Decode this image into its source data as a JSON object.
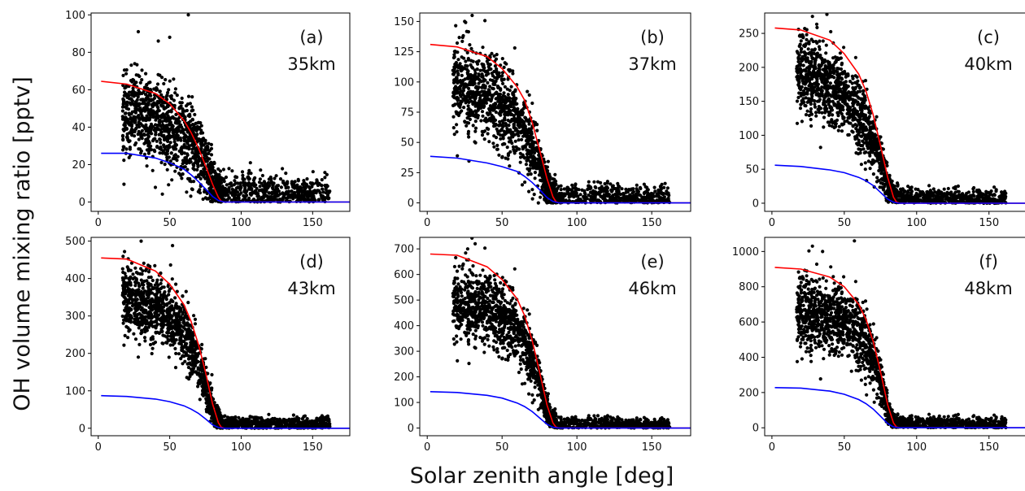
{
  "figure": {
    "ylabel": "OH volume mixing ratio [pptv]",
    "xlabel": "Solar zenith angle [deg]"
  },
  "style": {
    "point_color": "#000000",
    "red_curve_color": "#ff0000",
    "blue_curve_color": "#0000ff"
  },
  "chart_data": [
    {
      "type": "scatter",
      "panel": "(a)",
      "altitude": "35km",
      "xlim": [
        -5,
        176
      ],
      "ylim": [
        -5,
        101
      ],
      "xticks": [
        0,
        50,
        100,
        150
      ],
      "yticks": [
        0,
        20,
        40,
        60,
        80,
        100
      ],
      "scatter_center": [
        [
          18,
          48
        ],
        [
          30,
          46
        ],
        [
          45,
          42
        ],
        [
          55,
          38
        ],
        [
          62,
          34
        ],
        [
          68,
          30
        ],
        [
          74,
          22
        ],
        [
          78,
          13
        ],
        [
          82,
          7
        ],
        [
          86,
          5
        ],
        [
          100,
          5
        ],
        [
          160,
          5
        ]
      ],
      "scatter_spread": [
        [
          18,
          12
        ],
        [
          50,
          11
        ],
        [
          70,
          9
        ],
        [
          82,
          6
        ],
        [
          90,
          5
        ],
        [
          160,
          4.5
        ]
      ],
      "outliers": [
        [
          28,
          91
        ],
        [
          42,
          86
        ],
        [
          50,
          88
        ],
        [
          63,
          100
        ],
        [
          18,
          9.5
        ]
      ],
      "series": [
        {
          "name": "",
          "color": "red",
          "x": [
            2,
            20,
            40,
            50,
            60,
            65,
            70,
            75,
            80,
            84,
            86,
            88,
            176
          ],
          "y": [
            64.5,
            63,
            58,
            52.5,
            43.5,
            37,
            29,
            19.5,
            9.5,
            2.5,
            0.5,
            0,
            0
          ]
        },
        {
          "name": "",
          "color": "blue",
          "x": [
            2,
            20,
            40,
            50,
            60,
            65,
            70,
            75,
            80,
            84,
            88,
            176
          ],
          "y": [
            26,
            26,
            23.5,
            21,
            17.5,
            14.5,
            11,
            7,
            3,
            0.8,
            0,
            0
          ]
        }
      ]
    },
    {
      "type": "scatter",
      "panel": "(b)",
      "altitude": "37km",
      "xlim": [
        -5,
        176
      ],
      "ylim": [
        -7,
        157
      ],
      "xticks": [
        0,
        50,
        100,
        150
      ],
      "yticks": [
        0,
        25,
        50,
        75,
        100,
        125,
        150
      ],
      "scatter_center": [
        [
          18,
          100
        ],
        [
          30,
          94
        ],
        [
          45,
          85
        ],
        [
          55,
          76
        ],
        [
          62,
          64
        ],
        [
          68,
          52
        ],
        [
          74,
          36
        ],
        [
          78,
          20
        ],
        [
          82,
          10
        ],
        [
          86,
          6
        ],
        [
          100,
          5
        ],
        [
          160,
          5
        ]
      ],
      "scatter_spread": [
        [
          18,
          20
        ],
        [
          50,
          18
        ],
        [
          70,
          14
        ],
        [
          82,
          7
        ],
        [
          90,
          5
        ],
        [
          160,
          5
        ]
      ],
      "outliers": [
        [
          25,
          150
        ],
        [
          30,
          155
        ]
      ],
      "series": [
        {
          "name": "",
          "color": "red",
          "x": [
            2,
            20,
            40,
            50,
            60,
            65,
            70,
            75,
            80,
            84,
            86,
            88,
            176
          ],
          "y": [
            131,
            129,
            121,
            111,
            96,
            85,
            67,
            44,
            20,
            5,
            1,
            0,
            0
          ]
        },
        {
          "name": "",
          "color": "blue",
          "x": [
            2,
            20,
            40,
            50,
            60,
            65,
            70,
            75,
            80,
            84,
            88,
            176
          ],
          "y": [
            38.5,
            37,
            33,
            30,
            26,
            22,
            17,
            11,
            4.5,
            1.2,
            0,
            0
          ]
        }
      ]
    },
    {
      "type": "scatter",
      "panel": "(c)",
      "altitude": "40km",
      "xlim": [
        -5,
        176
      ],
      "ylim": [
        -12,
        280
      ],
      "xticks": [
        0,
        50,
        100,
        150
      ],
      "yticks": [
        0,
        50,
        100,
        150,
        200,
        250
      ],
      "scatter_center": [
        [
          18,
          195
        ],
        [
          30,
          185
        ],
        [
          45,
          165
        ],
        [
          55,
          145
        ],
        [
          62,
          125
        ],
        [
          68,
          100
        ],
        [
          74,
          70
        ],
        [
          78,
          40
        ],
        [
          82,
          18
        ],
        [
          86,
          10
        ],
        [
          100,
          7
        ],
        [
          160,
          7
        ]
      ],
      "scatter_spread": [
        [
          18,
          30
        ],
        [
          50,
          28
        ],
        [
          70,
          22
        ],
        [
          82,
          10
        ],
        [
          90,
          7
        ],
        [
          160,
          6
        ]
      ],
      "outliers": [
        [
          28,
          275
        ],
        [
          38,
          278
        ]
      ],
      "series": [
        {
          "name": "",
          "color": "red",
          "x": [
            2,
            20,
            40,
            50,
            60,
            65,
            70,
            75,
            80,
            84,
            86,
            88,
            176
          ],
          "y": [
            258,
            255,
            240,
            220,
            190,
            165,
            130,
            85,
            38,
            9,
            2,
            0,
            0
          ]
        },
        {
          "name": "",
          "color": "blue",
          "x": [
            2,
            20,
            40,
            50,
            60,
            65,
            70,
            75,
            80,
            84,
            88,
            176
          ],
          "y": [
            56,
            54,
            49,
            45,
            38,
            33,
            26,
            16,
            6,
            1.5,
            0,
            0
          ]
        }
      ]
    },
    {
      "type": "scatter",
      "panel": "(d)",
      "altitude": "43km",
      "xlim": [
        -5,
        176
      ],
      "ylim": [
        -20,
        510
      ],
      "xticks": [
        0,
        50,
        100,
        150
      ],
      "yticks": [
        0,
        100,
        200,
        300,
        400,
        500
      ],
      "scatter_center": [
        [
          18,
          350
        ],
        [
          30,
          335
        ],
        [
          45,
          310
        ],
        [
          55,
          280
        ],
        [
          62,
          240
        ],
        [
          68,
          190
        ],
        [
          74,
          130
        ],
        [
          78,
          70
        ],
        [
          82,
          30
        ],
        [
          86,
          15
        ],
        [
          100,
          12
        ],
        [
          160,
          12
        ]
      ],
      "scatter_spread": [
        [
          18,
          45
        ],
        [
          50,
          45
        ],
        [
          70,
          38
        ],
        [
          82,
          16
        ],
        [
          90,
          10
        ],
        [
          160,
          9
        ]
      ],
      "outliers": [
        [
          30,
          500
        ],
        [
          52,
          488
        ],
        [
          18,
          222
        ],
        [
          28,
          190
        ]
      ],
      "series": [
        {
          "name": "",
          "color": "red",
          "x": [
            2,
            20,
            40,
            50,
            60,
            65,
            70,
            75,
            80,
            84,
            86,
            88,
            176
          ],
          "y": [
            455,
            452,
            420,
            385,
            330,
            285,
            225,
            150,
            65,
            15,
            3,
            0,
            0
          ]
        },
        {
          "name": "",
          "color": "blue",
          "x": [
            2,
            20,
            40,
            50,
            60,
            65,
            70,
            75,
            80,
            84,
            88,
            176
          ],
          "y": [
            87,
            85,
            78,
            71,
            60,
            51,
            40,
            25,
            9,
            2,
            0,
            0
          ]
        }
      ]
    },
    {
      "type": "scatter",
      "panel": "(e)",
      "altitude": "46km",
      "xlim": [
        -5,
        176
      ],
      "ylim": [
        -30,
        745
      ],
      "xticks": [
        0,
        50,
        100,
        150
      ],
      "yticks": [
        0,
        100,
        200,
        300,
        400,
        500,
        600,
        700
      ],
      "scatter_center": [
        [
          18,
          490
        ],
        [
          30,
          480
        ],
        [
          45,
          455
        ],
        [
          55,
          420
        ],
        [
          62,
          370
        ],
        [
          68,
          300
        ],
        [
          74,
          210
        ],
        [
          78,
          110
        ],
        [
          82,
          45
        ],
        [
          86,
          20
        ],
        [
          100,
          15
        ],
        [
          160,
          15
        ]
      ],
      "scatter_spread": [
        [
          18,
          75
        ],
        [
          50,
          70
        ],
        [
          70,
          55
        ],
        [
          82,
          22
        ],
        [
          90,
          14
        ],
        [
          160,
          12
        ]
      ],
      "outliers": [
        [
          32,
          720
        ],
        [
          27,
          700
        ]
      ],
      "series": [
        {
          "name": "",
          "color": "red",
          "x": [
            2,
            20,
            40,
            50,
            60,
            65,
            70,
            75,
            80,
            84,
            86,
            88,
            176
          ],
          "y": [
            680,
            675,
            630,
            580,
            505,
            440,
            345,
            220,
            90,
            20,
            4,
            0,
            0
          ]
        },
        {
          "name": "",
          "color": "blue",
          "x": [
            2,
            20,
            40,
            50,
            60,
            65,
            70,
            75,
            80,
            84,
            88,
            176
          ],
          "y": [
            142,
            139,
            128,
            117,
            98,
            84,
            65,
            40,
            15,
            3,
            0,
            0
          ]
        }
      ]
    },
    {
      "type": "scatter",
      "panel": "(f)",
      "altitude": "48km",
      "xlim": [
        -5,
        176
      ],
      "ylim": [
        -45,
        1080
      ],
      "xticks": [
        0,
        50,
        100,
        150
      ],
      "yticks": [
        0,
        200,
        400,
        600,
        800,
        1000
      ],
      "scatter_center": [
        [
          18,
          660
        ],
        [
          30,
          640
        ],
        [
          45,
          610
        ],
        [
          55,
          575
        ],
        [
          62,
          515
        ],
        [
          68,
          430
        ],
        [
          74,
          300
        ],
        [
          78,
          160
        ],
        [
          82,
          60
        ],
        [
          86,
          28
        ],
        [
          100,
          22
        ],
        [
          160,
          22
        ]
      ],
      "scatter_spread": [
        [
          18,
          110
        ],
        [
          50,
          100
        ],
        [
          70,
          80
        ],
        [
          82,
          30
        ],
        [
          90,
          20
        ],
        [
          160,
          18
        ]
      ],
      "outliers": [
        [
          28,
          1030
        ],
        [
          57,
          1060
        ],
        [
          35,
          1000
        ]
      ],
      "series": [
        {
          "name": "",
          "color": "red",
          "x": [
            2,
            20,
            40,
            50,
            60,
            65,
            70,
            75,
            80,
            84,
            86,
            88,
            176
          ],
          "y": [
            910,
            900,
            855,
            800,
            700,
            615,
            490,
            320,
            130,
            28,
            5,
            0,
            0
          ]
        },
        {
          "name": "",
          "color": "blue",
          "x": [
            2,
            20,
            40,
            50,
            60,
            65,
            70,
            75,
            80,
            84,
            88,
            176
          ],
          "y": [
            228,
            225,
            208,
            190,
            160,
            137,
            106,
            66,
            24,
            5,
            0,
            0
          ]
        }
      ]
    }
  ]
}
